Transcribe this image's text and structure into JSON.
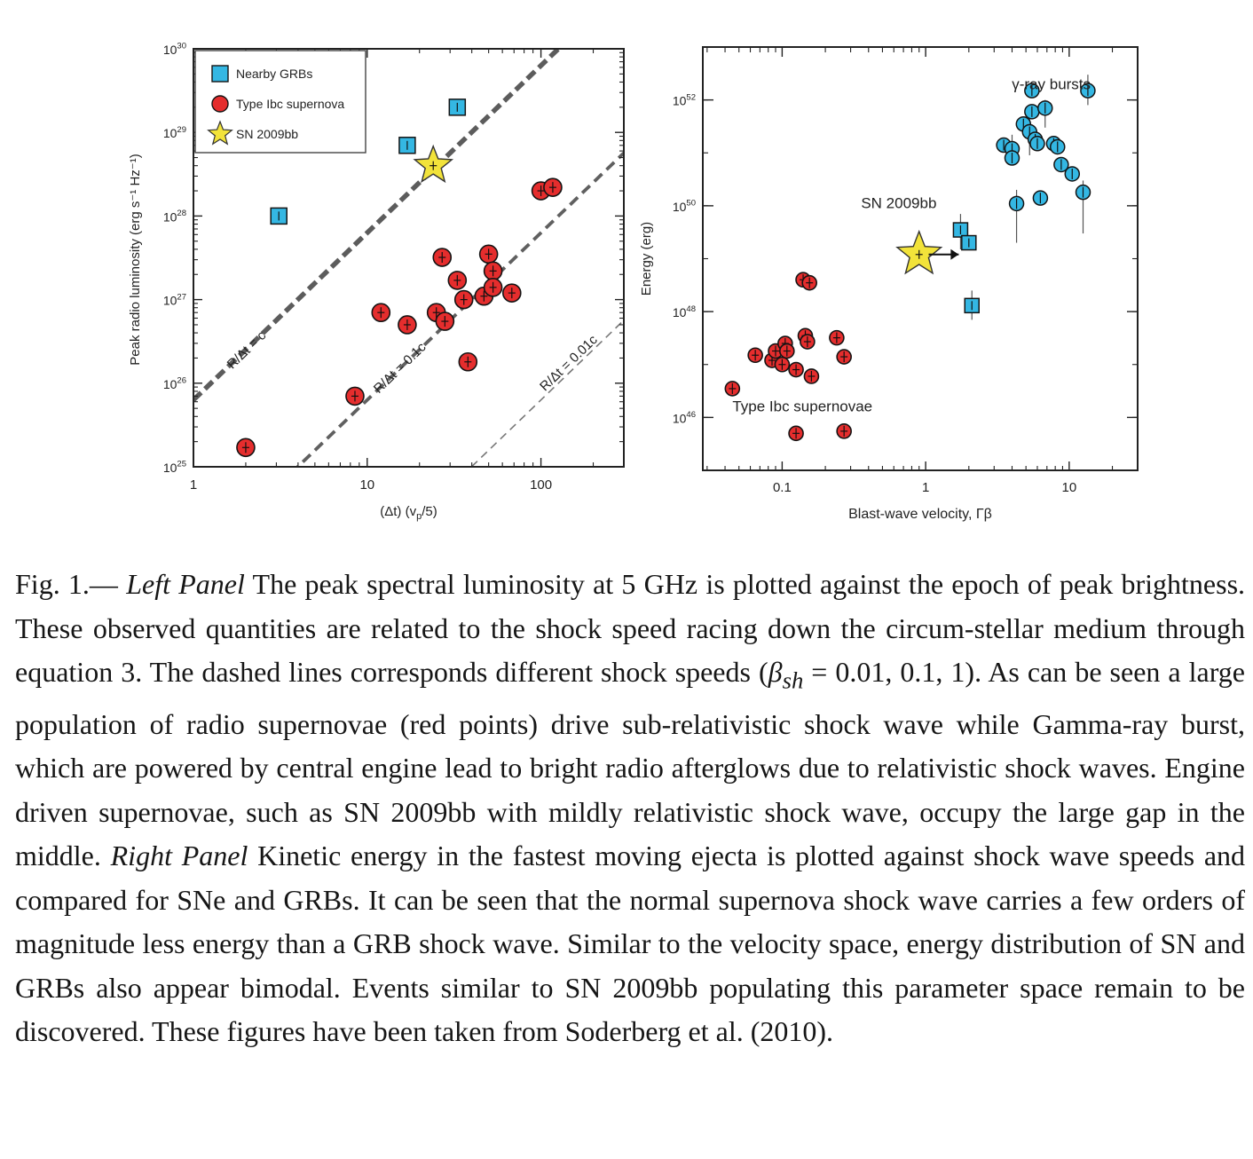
{
  "chart_data": [
    {
      "type": "scatter",
      "panel": "Left Panel",
      "xlabel": "(Δt) (v",
      "xlabel_sub": "p",
      "xlabel_tail": "/5)",
      "ylabel": "Peak radio luminosity (erg s⁻¹ Hz⁻¹)",
      "xscale": "log",
      "yscale": "log",
      "xlim": [
        1,
        300
      ],
      "ylim": [
        1e+25,
        1e+30
      ],
      "x_ticks": [
        {
          "value": 1,
          "label": "1"
        },
        {
          "value": 10,
          "label": "10"
        },
        {
          "value": 100,
          "label": "100"
        }
      ],
      "y_ticks": [
        {
          "exp": 25,
          "base": "10",
          "sup": "25"
        },
        {
          "exp": 26,
          "base": "10",
          "sup": "26"
        },
        {
          "exp": 27,
          "base": "10",
          "sup": "27"
        },
        {
          "exp": 28,
          "base": "10",
          "sup": "28"
        },
        {
          "exp": 29,
          "base": "10",
          "sup": "29"
        },
        {
          "exp": 30,
          "base": "10",
          "sup": "30"
        }
      ],
      "legend_position": "top-left",
      "legend": [
        {
          "label": "Nearby GRBs",
          "marker": "square",
          "color": "#34b7e3"
        },
        {
          "label": "Type Ibc supernova",
          "marker": "circle",
          "color": "#e52d2d"
        },
        {
          "label": "SN 2009bb",
          "marker": "star",
          "color": "#f2e33a"
        }
      ],
      "reference_lines": [
        {
          "label": "R/Δt = c",
          "beta": 1,
          "style": "thick-dashed",
          "x_range": [
            1,
            300
          ],
          "label_at": {
            "x": 2.1,
            "y": 2.3e+26
          }
        },
        {
          "label": "R/Δt = 0.1c",
          "beta": 0.1,
          "style": "dashed",
          "x_range": [
            1,
            300
          ],
          "label_at": {
            "x": 16,
            "y": 1.4e+26
          }
        },
        {
          "label": "R/Δt = 0.01c",
          "beta": 0.01,
          "style": "thin-dashed",
          "x_range": [
            1,
            300
          ],
          "label_at": {
            "x": 150,
            "y": 1.6e+26
          }
        }
      ],
      "series": [
        {
          "name": "Nearby GRBs",
          "marker": "square",
          "points": [
            {
              "x": 3.1,
              "y": 1e+28
            },
            {
              "x": 17,
              "y": 7e+28
            },
            {
              "x": 33,
              "y": 2e+29
            }
          ]
        },
        {
          "name": "Type Ibc supernova",
          "marker": "circle",
          "points": [
            {
              "x": 2.0,
              "y": 1.7e+25
            },
            {
              "x": 8.5,
              "y": 7e+25
            },
            {
              "x": 12,
              "y": 7e+26
            },
            {
              "x": 17,
              "y": 5e+26
            },
            {
              "x": 25,
              "y": 7e+26
            },
            {
              "x": 27,
              "y": 3.2e+27
            },
            {
              "x": 28,
              "y": 5.5e+26
            },
            {
              "x": 33,
              "y": 1.7e+27
            },
            {
              "x": 36,
              "y": 1e+27
            },
            {
              "x": 38,
              "y": 1.8e+26
            },
            {
              "x": 47,
              "y": 1.1e+27
            },
            {
              "x": 50,
              "y": 3.5e+27
            },
            {
              "x": 53,
              "y": 2.2e+27
            },
            {
              "x": 53,
              "y": 1.4e+27
            },
            {
              "x": 68,
              "y": 1.2e+27
            },
            {
              "x": 100,
              "y": 2e+28
            },
            {
              "x": 117,
              "y": 2.2e+28
            }
          ]
        },
        {
          "name": "SN 2009bb",
          "marker": "star",
          "points": [
            {
              "x": 24,
              "y": 4e+28
            }
          ]
        }
      ]
    },
    {
      "type": "scatter",
      "panel": "Right Panel",
      "xlabel": "Blast-wave velocity, Γβ",
      "ylabel": "Energy (erg)",
      "xscale": "log",
      "yscale": "log",
      "xlim": [
        0.028,
        30
      ],
      "ylim": [
        1e+45,
        1e+53
      ],
      "x_ticks": [
        {
          "value": 0.1,
          "label": "0.1"
        },
        {
          "value": 1,
          "label": "1"
        },
        {
          "value": 10,
          "label": "10"
        }
      ],
      "y_ticks": [
        {
          "exp": 46,
          "base": "10",
          "sup": "46"
        },
        {
          "exp": 48,
          "base": "10",
          "sup": "48"
        },
        {
          "exp": 50,
          "base": "10",
          "sup": "50"
        },
        {
          "exp": 52,
          "base": "10",
          "sup": "52"
        }
      ],
      "annotations": [
        {
          "text": "γ-ray bursts",
          "x": 7.5,
          "y": 1.6e+52
        },
        {
          "text": "SN 2009bb",
          "x": 0.65,
          "y": 9e+49
        },
        {
          "text": "Type Ibc supernovae",
          "x": 0.045,
          "y": 1.3e+46
        }
      ],
      "arrow": {
        "from": {
          "x": 1.05,
          "y": 1.2e+49
        },
        "to": {
          "x": 1.7,
          "y": 1.2e+49
        }
      },
      "series": [
        {
          "name": "Type Ibc supernovae",
          "marker": "circle",
          "points": [
            {
              "x": 0.045,
              "y": 3.5e+46
            },
            {
              "x": 0.065,
              "y": 1.5e+47
            },
            {
              "x": 0.085,
              "y": 1.2e+47
            },
            {
              "x": 0.09,
              "y": 1.8e+47
            },
            {
              "x": 0.1,
              "y": 1e+47
            },
            {
              "x": 0.105,
              "y": 2.5e+47
            },
            {
              "x": 0.108,
              "y": 1.8e+47
            },
            {
              "x": 0.125,
              "y": 8e+46
            },
            {
              "x": 0.125,
              "y": 5e+45
            },
            {
              "x": 0.14,
              "y": 4e+48
            },
            {
              "x": 0.145,
              "y": 3.5e+47
            },
            {
              "x": 0.15,
              "y": 2.7e+47
            },
            {
              "x": 0.155,
              "y": 3.5e+48
            },
            {
              "x": 0.16,
              "y": 6e+46
            },
            {
              "x": 0.24,
              "y": 3.2e+47
            },
            {
              "x": 0.27,
              "y": 1.4e+47
            },
            {
              "x": 0.27,
              "y": 5.5e+45
            }
          ]
        },
        {
          "name": "SN 2009bb",
          "marker": "star",
          "points": [
            {
              "x": 0.9,
              "y": 1.2e+49
            }
          ]
        },
        {
          "name": "SN 2009bb (squares)",
          "marker": "square",
          "points": [
            {
              "x": 1.75,
              "y": 3.5e+49
            },
            {
              "x": 2.0,
              "y": 2e+49
            },
            {
              "x": 2.1,
              "y": 1.3e+48
            }
          ]
        },
        {
          "name": "γ-ray bursts",
          "marker": "circle",
          "points": [
            {
              "x": 3.5,
              "y": 1.4e+51
            },
            {
              "x": 4.0,
              "y": 1.2e+51
            },
            {
              "x": 4.0,
              "y": 8e+50
            },
            {
              "x": 4.3,
              "y": 1.1e+50
            },
            {
              "x": 4.8,
              "y": 3.5e+51
            },
            {
              "x": 5.3,
              "y": 2.5e+51
            },
            {
              "x": 5.5,
              "y": 1.5e+52
            },
            {
              "x": 5.5,
              "y": 6e+51
            },
            {
              "x": 5.8,
              "y": 1.8e+51
            },
            {
              "x": 6.0,
              "y": 1.5e+51
            },
            {
              "x": 6.3,
              "y": 1.4e+50
            },
            {
              "x": 6.8,
              "y": 7e+51
            },
            {
              "x": 7.8,
              "y": 1.5e+51
            },
            {
              "x": 8.3,
              "y": 1.3e+51
            },
            {
              "x": 8.8,
              "y": 6e+50
            },
            {
              "x": 10.5,
              "y": 4e+50
            },
            {
              "x": 12.5,
              "y": 1.8e+50
            },
            {
              "x": 13.5,
              "y": 1.5e+52
            }
          ]
        }
      ]
    }
  ],
  "caption": {
    "fig_label": "Fig. 1.—",
    "left_title": "Left Panel",
    "left_text_1": "The peak spectral luminosity at 5 GHz is plotted against the epoch of peak brightness. These observed quantities are related to the shock speed racing down the circum-stellar medium through equation 3. The dashed lines corresponds different shock speeds (",
    "math": "β",
    "math_sub": "sh",
    "math_tail": " = 0.01, 0.1, 1",
    "left_text_2": "). As can be seen a large population of radio supernovae (red points) drive sub-relativistic shock wave while Gamma-ray burst, which are powered by central engine lead to bright radio afterglows due to relativistic shock waves. Engine driven supernovae, such as SN 2009bb with mildly relativistic shock wave, occupy the large gap in the middle.",
    "right_title": "Right Panel",
    "right_text": "Kinetic energy in the fastest moving ejecta is plotted against shock wave speeds and compared for SNe and GRBs. It can be seen that the normal supernova shock wave carries a few orders of magnitude less energy than a GRB shock wave. Similar to the velocity space, energy distribution of SN and GRBs also appear bimodal. Events similar to SN 2009bb populating this parameter space remain to be discovered. These figures have been taken from Soderberg et al. (2010)."
  },
  "colors": {
    "supernova_red": "#e52d2d",
    "grb_blue": "#34b7e3",
    "star_yellow": "#f2e33a",
    "dash_gray": "#666666"
  }
}
